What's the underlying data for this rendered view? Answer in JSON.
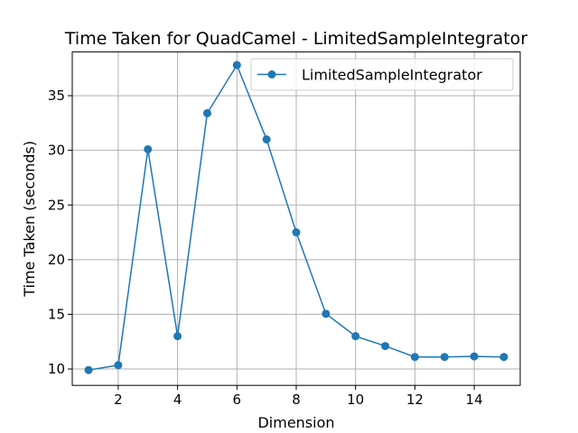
{
  "chart_data": {
    "type": "line",
    "title": "Time Taken for QuadCamel - LimitedSampleIntegrator",
    "xlabel": "Dimension",
    "ylabel": "Time Taken (seconds)",
    "xlim": [
      0.45,
      15.55
    ],
    "ylim": [
      8.5,
      39.0
    ],
    "xticks": [
      2,
      4,
      6,
      8,
      10,
      12,
      14
    ],
    "yticks": [
      10,
      15,
      20,
      25,
      30,
      35
    ],
    "grid": true,
    "legend": "top-right",
    "series": [
      {
        "name": "LimitedSampleIntegrator",
        "color": "#1f77b4",
        "marker": "circle",
        "x": [
          1,
          2,
          3,
          4,
          5,
          6,
          7,
          8,
          9,
          10,
          11,
          12,
          13,
          14,
          15
        ],
        "y": [
          9.9,
          10.35,
          30.1,
          13.0,
          33.4,
          37.8,
          31.0,
          22.5,
          15.05,
          13.0,
          12.1,
          11.1,
          11.1,
          11.15,
          11.1
        ]
      }
    ]
  }
}
